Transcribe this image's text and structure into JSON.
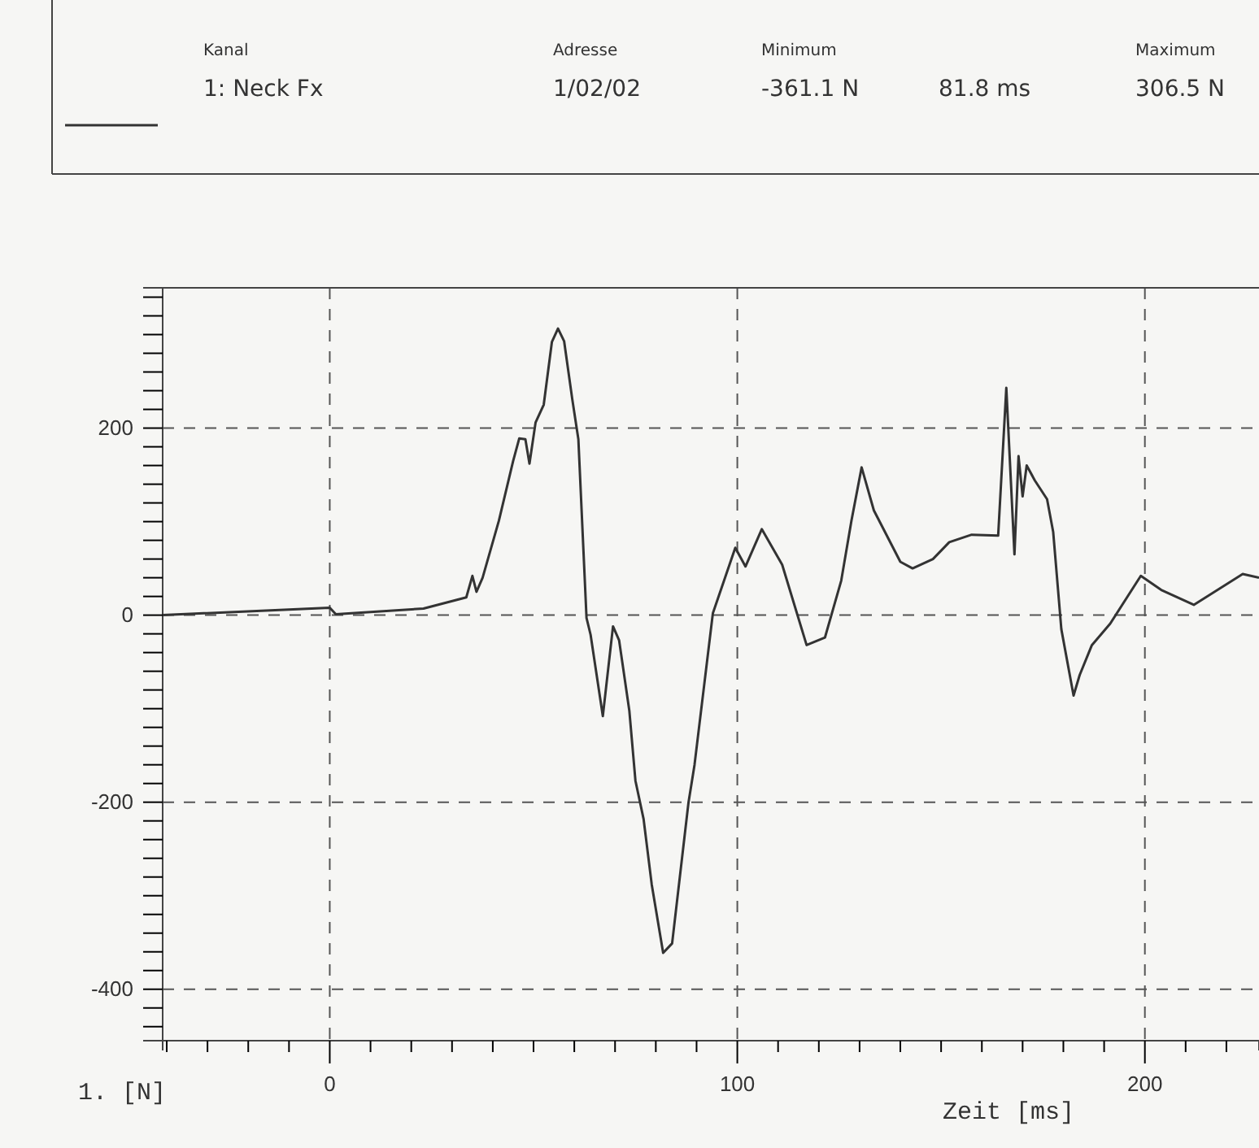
{
  "chart_data": {
    "type": "line",
    "xlabel": "Zeit [ms]",
    "ylabel": "1. [N]",
    "annotations": [
      "Kanal",
      "Adresse",
      "Minimum",
      "Maximum",
      "1/02/02",
      "-361.1 N",
      "81.8 ms",
      "306.5 N"
    ],
    "legend": "top left",
    "grid": true,
    "line_style": "solid",
    "marker": "none",
    "xlim": [
      -41,
      228
    ],
    "ylim": [
      -455,
      350
    ],
    "xticks": [
      {
        "value": -40,
        "label": null
      },
      {
        "value": -30,
        "label": null
      },
      {
        "value": -20,
        "label": null
      },
      {
        "value": -10,
        "label": null
      },
      0,
      {
        "value": 10,
        "label": null
      },
      {
        "value": 20,
        "label": null
      },
      {
        "value": 30,
        "label": null
      },
      {
        "value": 40,
        "label": null
      },
      {
        "value": 50,
        "label": null
      },
      {
        "value": 60,
        "label": null
      },
      {
        "value": 70,
        "label": null
      },
      {
        "value": 80,
        "label": null
      },
      {
        "value": 90,
        "label": null
      },
      100,
      {
        "value": 110,
        "label": null
      },
      {
        "value": 120,
        "label": null
      },
      {
        "value": 130,
        "label": null
      },
      {
        "value": 140,
        "label": null
      },
      {
        "value": 150,
        "label": null
      },
      {
        "value": 160,
        "label": null
      },
      {
        "value": 170,
        "label": null
      },
      {
        "value": 180,
        "label": null
      },
      {
        "value": 190,
        "label": null
      },
      200,
      {
        "value": 210,
        "label": null
      },
      {
        "value": 220,
        "label": null
      }
    ],
    "yticks": [
      {
        "value": -440,
        "label": null
      },
      {
        "value": -420,
        "label": null
      },
      -400,
      {
        "value": -380,
        "label": null
      },
      {
        "value": -360,
        "label": null
      },
      {
        "value": -340,
        "label": null
      },
      {
        "value": -320,
        "label": null
      },
      {
        "value": -300,
        "label": null
      },
      {
        "value": -280,
        "label": null
      },
      {
        "value": -260,
        "label": null
      },
      {
        "value": -240,
        "label": null
      },
      {
        "value": -220,
        "label": null
      },
      -200,
      {
        "value": -180,
        "label": null
      },
      {
        "value": -160,
        "label": null
      },
      {
        "value": -140,
        "label": null
      },
      {
        "value": -120,
        "label": null
      },
      {
        "value": -100,
        "label": null
      },
      {
        "value": -80,
        "label": null
      },
      {
        "value": -60,
        "label": null
      },
      {
        "value": -40,
        "label": null
      },
      {
        "value": -20,
        "label": null
      },
      0,
      {
        "value": 20,
        "label": null
      },
      {
        "value": 40,
        "label": null
      },
      {
        "value": 60,
        "label": null
      },
      {
        "value": 80,
        "label": null
      },
      {
        "value": 100,
        "label": null
      },
      {
        "value": 120,
        "label": null
      },
      {
        "value": 140,
        "label": null
      },
      {
        "value": 160,
        "label": null
      },
      {
        "value": 180,
        "label": null
      },
      200,
      {
        "value": 220,
        "label": null
      },
      {
        "value": 240,
        "label": null
      },
      {
        "value": 260,
        "label": null
      },
      {
        "value": 280,
        "label": null
      },
      {
        "value": 300,
        "label": null
      },
      {
        "value": 320,
        "label": null
      },
      {
        "value": 340,
        "label": null
      }
    ],
    "series": [
      {
        "name": "1: Neck Fx",
        "color": "#333333",
        "x": [
          -41,
          0,
          1.5,
          23,
          33.5,
          35,
          36,
          37.5,
          41.5,
          45,
          46.5,
          48,
          49,
          50.5,
          52.5,
          54.5,
          56,
          57.5,
          59.5,
          61,
          63,
          64,
          67,
          69.5,
          71,
          73.5,
          75,
          77,
          79,
          81.8,
          84,
          88,
          89.5,
          94,
          99.5,
          102,
          106,
          111,
          117,
          121.5,
          125.5,
          128,
          130.5,
          133.5,
          140,
          143,
          148,
          152,
          157.5,
          164,
          166,
          168,
          169,
          170,
          171,
          173,
          176,
          177.5,
          179.5,
          182.5,
          184,
          187,
          191.5,
          199,
          204,
          212,
          224,
          228
        ],
        "values": [
          0,
          8,
          1,
          7,
          19,
          42,
          25,
          40,
          101,
          165,
          189,
          188,
          162,
          206,
          225,
          292,
          306.5,
          293,
          231,
          188,
          -3,
          -21,
          -108,
          -12,
          -27,
          -102,
          -177,
          -218,
          -288,
          -361.1,
          -351,
          -201,
          -160,
          2,
          72,
          52,
          92,
          54,
          -32,
          -24,
          37,
          101,
          158,
          112,
          57,
          50,
          60,
          78,
          86,
          85,
          243,
          65,
          170,
          127,
          160,
          144,
          124,
          89,
          -15,
          -86,
          -64,
          -32,
          -9,
          42,
          27,
          11,
          44,
          40
        ]
      }
    ]
  }
}
